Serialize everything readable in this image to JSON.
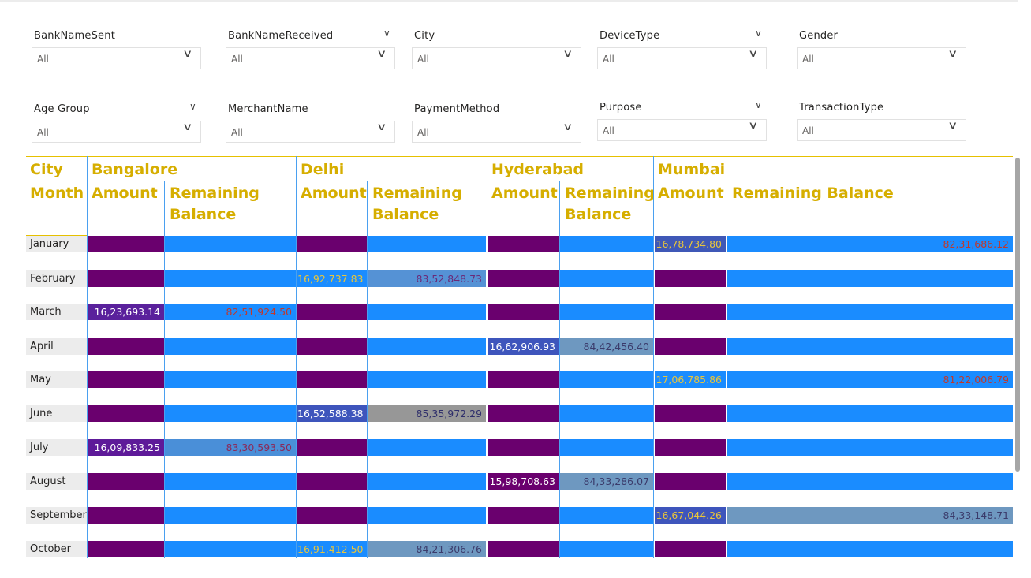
{
  "slicers_row1": [
    {
      "id": "banknamesent",
      "title": "BankNameSent",
      "value": "All",
      "title_chevron": false
    },
    {
      "id": "banknamereceived",
      "title": "BankNameReceived",
      "value": "All",
      "title_chevron": true
    },
    {
      "id": "city",
      "title": "City",
      "value": "All",
      "title_chevron": false
    },
    {
      "id": "devicetype",
      "title": "DeviceType",
      "value": "All",
      "title_chevron": true
    },
    {
      "id": "gender",
      "title": "Gender",
      "value": "All",
      "title_chevron": false
    }
  ],
  "slicers_row2": [
    {
      "id": "agegroup",
      "title": "Age Group",
      "value": "All",
      "title_chevron": true
    },
    {
      "id": "merchantname",
      "title": "MerchantName",
      "value": "All",
      "title_chevron": false
    },
    {
      "id": "paymentmethod",
      "title": "PaymentMethod",
      "value": "All",
      "title_chevron": false
    },
    {
      "id": "purpose",
      "title": "Purpose",
      "value": "All",
      "title_chevron": true
    },
    {
      "id": "transactiontype",
      "title": "TransactionType",
      "value": "All",
      "title_chevron": false
    }
  ],
  "matrix": {
    "row_header_top": "City",
    "row_header_bottom": "Month",
    "amount_label": "Amount",
    "remaining_label": "Remaining Balance",
    "remaining_label_wrapped": [
      "Remaining",
      "Balance"
    ],
    "cities": [
      "Bangalore",
      "Delhi",
      "Hyderabad",
      "Mumbai"
    ],
    "rows": [
      {
        "month": "January",
        "cells": [
          [
            "",
            ""
          ],
          [
            "",
            ""
          ],
          [
            "",
            ""
          ],
          [
            "16,78,734.80",
            "82,31,686.12"
          ]
        ]
      },
      {
        "month": "February",
        "cells": [
          [
            "",
            ""
          ],
          [
            "16,92,737.83",
            "83,52,848.73"
          ],
          [
            "",
            ""
          ],
          [
            "",
            ""
          ]
        ]
      },
      {
        "month": "March",
        "cells": [
          [
            "16,23,693.14",
            "82,51,924.50"
          ],
          [
            "",
            ""
          ],
          [
            "",
            ""
          ],
          [
            "",
            ""
          ]
        ]
      },
      {
        "month": "April",
        "cells": [
          [
            "",
            ""
          ],
          [
            "",
            ""
          ],
          [
            "16,62,906.93",
            "84,42,456.40"
          ],
          [
            "",
            ""
          ]
        ]
      },
      {
        "month": "May",
        "cells": [
          [
            "",
            ""
          ],
          [
            "",
            ""
          ],
          [
            "",
            ""
          ],
          [
            "17,06,785.86",
            "81,22,006.79"
          ]
        ]
      },
      {
        "month": "June",
        "cells": [
          [
            "",
            ""
          ],
          [
            "16,52,588.38",
            "85,35,972.29"
          ],
          [
            "",
            ""
          ],
          [
            "",
            ""
          ]
        ]
      },
      {
        "month": "July",
        "cells": [
          [
            "16,09,833.25",
            "83,30,593.50"
          ],
          [
            "",
            ""
          ],
          [
            "",
            ""
          ],
          [
            "",
            ""
          ]
        ]
      },
      {
        "month": "August",
        "cells": [
          [
            "",
            ""
          ],
          [
            "",
            ""
          ],
          [
            "15,98,708.63",
            "84,33,286.07"
          ],
          [
            "",
            ""
          ]
        ]
      },
      {
        "month": "September",
        "cells": [
          [
            "",
            ""
          ],
          [
            "",
            ""
          ],
          [
            "",
            ""
          ],
          [
            "16,67,044.26",
            "84,33,148.71"
          ]
        ]
      },
      {
        "month": "October",
        "cells": [
          [
            "",
            ""
          ],
          [
            "16,91,412.50",
            "84,21,306.76"
          ],
          [
            "",
            ""
          ],
          [
            "",
            ""
          ]
        ]
      }
    ]
  },
  "colors": {
    "header_gold": "#d6ae00",
    "amount_empty": "#6a006e",
    "balance_empty": "#1a8cff",
    "grid_blue": "#4aa0f0"
  },
  "styles": {
    "amount": {
      "16,78,734.80": {
        "bg": "#3f58b7",
        "fg": "#e9c53b"
      },
      "16,92,737.83": {
        "bg": "#1a8cff",
        "fg": "#e9c53b"
      },
      "16,23,693.14": {
        "bg": "#5a219c",
        "fg": "#ffffff"
      },
      "16,62,906.93": {
        "bg": "#3e55bc",
        "fg": "#ffffff"
      },
      "17,06,785.86": {
        "bg": "#1a8cff",
        "fg": "#e9c53b"
      },
      "16,52,588.38": {
        "bg": "#3e55bc",
        "fg": "#ffffff"
      },
      "16,09,833.25": {
        "bg": "#5e1a99",
        "fg": "#ffffff"
      },
      "15,98,708.63": {
        "bg": "#6a006e",
        "fg": "#ffffff"
      },
      "16,67,044.26": {
        "bg": "#3e55bc",
        "fg": "#e9c53b"
      },
      "16,91,412.50": {
        "bg": "#1a8cff",
        "fg": "#e9c53b"
      }
    },
    "balance": {
      "82,31,686.12": {
        "bg": "#1a8cff",
        "fg": "#c0392b"
      },
      "83,52,848.73": {
        "bg": "#5592d5",
        "fg": "#6a2a78"
      },
      "82,51,924.50": {
        "bg": "#1a8cff",
        "fg": "#c0392b"
      },
      "84,42,456.40": {
        "bg": "#6e98c0",
        "fg": "#3b3b6b"
      },
      "81,22,006.79": {
        "bg": "#1a8cff",
        "fg": "#c0392b"
      },
      "85,35,972.29": {
        "bg": "#979797",
        "fg": "#2e2e6b"
      },
      "83,30,593.50": {
        "bg": "#4a8fd8",
        "fg": "#8a2a5a"
      },
      "84,33,286.07": {
        "bg": "#6e98c0",
        "fg": "#3b3b6b"
      },
      "84,33,148.71": {
        "bg": "#6e98c0",
        "fg": "#3b3b6b"
      },
      "84,21,306.76": {
        "bg": "#6e98c0",
        "fg": "#3b3b6b"
      }
    }
  }
}
